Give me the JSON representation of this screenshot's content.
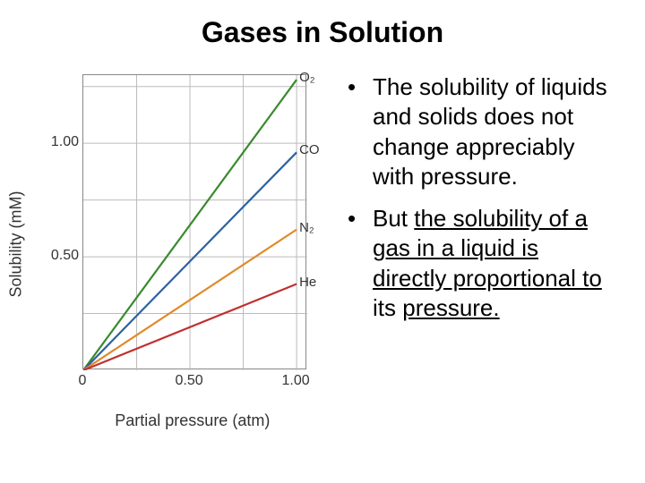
{
  "title": "Gases in Solution",
  "bullets": [
    {
      "parts": [
        {
          "text": "The solubility of liquids and solids does not change appreciably with pressure.",
          "u": false
        }
      ]
    },
    {
      "parts": [
        {
          "text": "But ",
          "u": false
        },
        {
          "text": "the solubility of a gas in a liquid is directly proportional to",
          "u": true
        },
        {
          "text": " its ",
          "u": false
        },
        {
          "text": "pressure.",
          "u": true
        }
      ]
    }
  ],
  "chart": {
    "type": "line",
    "xlabel": "Partial pressure (atm)",
    "ylabel": "Solubility (mM)",
    "xlim": [
      0,
      1.05
    ],
    "ylim": [
      0,
      1.3
    ],
    "xtick_major": [
      0,
      0.5,
      1.0
    ],
    "xtick_minor_step": 0.25,
    "ytick_major": [
      0.5,
      1.0
    ],
    "ytick_minor_step": 0.25,
    "xtick_labels": [
      "0",
      "0.50",
      "1.00"
    ],
    "ytick_labels": [
      "0.50",
      "1.00"
    ],
    "background": "#ffffff",
    "grid_color": "#bbbbbb",
    "axis_color": "#888888",
    "label_fontsize": 18,
    "tick_fontsize": 16,
    "series": [
      {
        "name": "O2",
        "label": "O₂",
        "color": "#3a8a2e",
        "x": [
          0,
          1.0
        ],
        "y": [
          0,
          1.28
        ],
        "line_width": 2.2
      },
      {
        "name": "CO",
        "label": "CO",
        "color": "#2e62a0",
        "x": [
          0,
          1.0
        ],
        "y": [
          0,
          0.96
        ],
        "line_width": 2.2
      },
      {
        "name": "N2",
        "label": "N₂",
        "color": "#e08a2a",
        "x": [
          0,
          1.0
        ],
        "y": [
          0,
          0.62
        ],
        "line_width": 2.2
      },
      {
        "name": "He",
        "label": "He",
        "color": "#c03030",
        "x": [
          0,
          1.0
        ],
        "y": [
          0,
          0.38
        ],
        "line_width": 2.2
      }
    ]
  }
}
